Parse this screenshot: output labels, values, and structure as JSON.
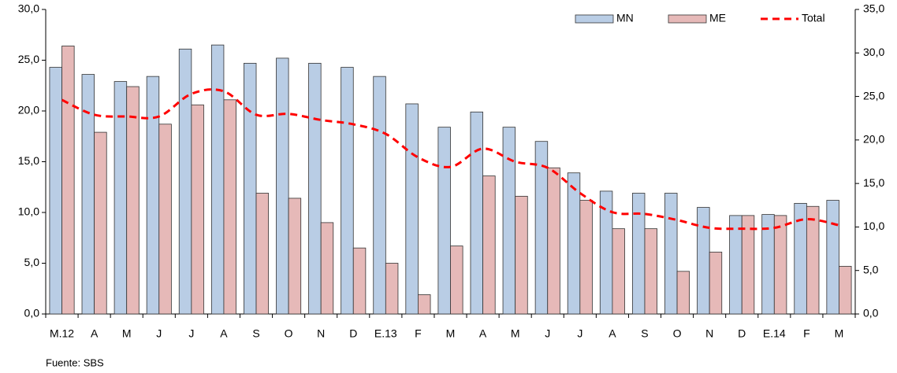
{
  "chart_data": {
    "type": "bar-line",
    "source": "Fuente: SBS",
    "categories": [
      "M.12",
      "A",
      "M",
      "J",
      "J",
      "A",
      "S",
      "O",
      "N",
      "D",
      "E.13",
      "F",
      "M",
      "A",
      "M",
      "J",
      "J",
      "A",
      "S",
      "O",
      "N",
      "D",
      "E.14",
      "F",
      "M"
    ],
    "series": [
      {
        "name": "MN",
        "type": "bar",
        "color": "#b9cde5",
        "values": [
          24.3,
          23.6,
          22.9,
          23.4,
          26.1,
          26.5,
          24.7,
          25.2,
          24.7,
          24.3,
          23.4,
          20.7,
          18.4,
          19.9,
          18.4,
          17.0,
          13.9,
          12.1,
          11.9,
          11.9,
          10.5,
          9.7,
          9.8,
          10.9,
          11.2
        ]
      },
      {
        "name": "ME",
        "type": "bar",
        "color": "#e6b9b8",
        "values": [
          26.4,
          17.9,
          22.4,
          18.7,
          20.6,
          21.1,
          11.9,
          11.4,
          9.0,
          6.5,
          5.0,
          1.9,
          6.7,
          13.6,
          11.6,
          14.4,
          11.2,
          8.4,
          8.4,
          4.2,
          6.1,
          9.7,
          9.7,
          10.6,
          4.7
        ]
      },
      {
        "name": "Total",
        "type": "line",
        "axis": "y2",
        "color": "#ff0000",
        "values": [
          24.6,
          22.9,
          22.7,
          22.7,
          25.3,
          25.6,
          22.9,
          23.0,
          22.3,
          21.8,
          20.7,
          18.0,
          16.9,
          19.0,
          17.5,
          16.8,
          13.9,
          11.7,
          11.5,
          10.8,
          9.9,
          9.8,
          9.9,
          10.9,
          10.2
        ]
      }
    ],
    "ylim": [
      0,
      30
    ],
    "yticks": [
      {
        "value": 0,
        "label": "0,0"
      },
      {
        "value": 5,
        "label": "5,0"
      },
      {
        "value": 10,
        "label": "10,0"
      },
      {
        "value": 15,
        "label": "15,0"
      },
      {
        "value": 20,
        "label": "20,0"
      },
      {
        "value": 25,
        "label": "25,0"
      },
      {
        "value": 30,
        "label": "30,0"
      }
    ],
    "y2lim": [
      0,
      35
    ],
    "y2ticks": [
      {
        "value": 0,
        "label": "0,0"
      },
      {
        "value": 5,
        "label": "5,0"
      },
      {
        "value": 10,
        "label": "10,0"
      },
      {
        "value": 15,
        "label": "15,0"
      },
      {
        "value": 20,
        "label": "20,0"
      },
      {
        "value": 25,
        "label": "25,0"
      },
      {
        "value": 30,
        "label": "30,0"
      },
      {
        "value": 35,
        "label": "35,0"
      }
    ],
    "legend": "top-right",
    "grid": false
  }
}
